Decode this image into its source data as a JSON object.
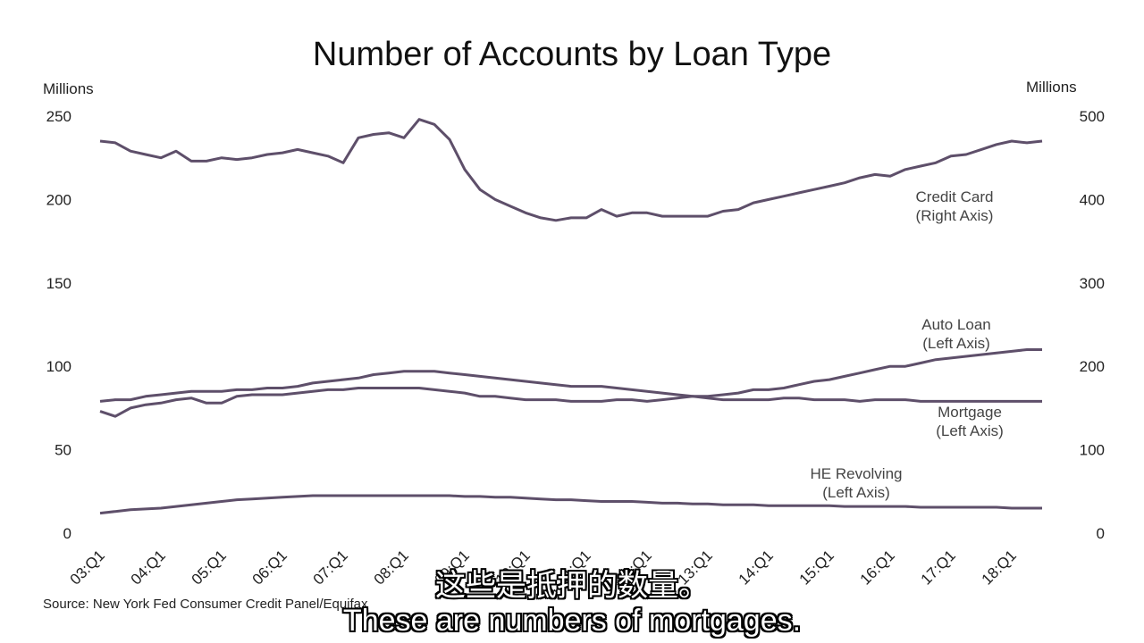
{
  "subtitles": {
    "chinese": "这些是抵押的数量。",
    "english": "These are numbers of mortgages."
  },
  "colors": {
    "series_line": "#5e4f6a",
    "text": "#222222",
    "subtitle_text": "#ffffff",
    "subtitle_outline": "#000000"
  },
  "chart_data": {
    "type": "line",
    "title": "Number of Accounts by Loan Type",
    "ylabel_left": "Millions",
    "ylabel_right": "Millions",
    "source": "Source: New York Fed Consumer Credit Panel/Equifax",
    "x_tick_labels": [
      "03:Q1",
      "04:Q1",
      "05:Q1",
      "06:Q1",
      "07:Q1",
      "08:Q1",
      "09:Q1",
      "10:Q1",
      "11:Q1",
      "12:Q1",
      "13:Q1",
      "14:Q1",
      "15:Q1",
      "16:Q1",
      "17:Q1",
      "18:Q1"
    ],
    "x_range": [
      2003.0,
      2018.5
    ],
    "ylim_left": [
      0,
      250
    ],
    "ylim_right": [
      0,
      500
    ],
    "yticks_left": [
      "0",
      "50",
      "100",
      "150",
      "200",
      "250"
    ],
    "yticks_right": [
      "0",
      "100",
      "200",
      "300",
      "400",
      "500"
    ],
    "grid": false,
    "series": [
      {
        "name": "Credit Card",
        "label_lines": [
          "Credit Card",
          "(Right Axis)"
        ],
        "axis": "right",
        "x": [
          2003.0,
          2003.25,
          2003.5,
          2003.75,
          2004.0,
          2004.25,
          2004.5,
          2004.75,
          2005.0,
          2005.25,
          2005.5,
          2005.75,
          2006.0,
          2006.25,
          2006.5,
          2006.75,
          2007.0,
          2007.25,
          2007.5,
          2007.75,
          2008.0,
          2008.25,
          2008.5,
          2008.75,
          2009.0,
          2009.25,
          2009.5,
          2009.75,
          2010.0,
          2010.25,
          2010.5,
          2010.75,
          2011.0,
          2011.25,
          2011.5,
          2011.75,
          2012.0,
          2012.25,
          2012.5,
          2012.75,
          2013.0,
          2013.25,
          2013.5,
          2013.75,
          2014.0,
          2014.25,
          2014.5,
          2014.75,
          2015.0,
          2015.25,
          2015.5,
          2015.75,
          2016.0,
          2016.25,
          2016.5,
          2016.75,
          2017.0,
          2017.25,
          2017.5,
          2017.75,
          2018.0,
          2018.25,
          2018.5
        ],
        "values": [
          470,
          468,
          458,
          454,
          450,
          458,
          446,
          446,
          450,
          448,
          450,
          454,
          456,
          460,
          456,
          452,
          444,
          474,
          478,
          480,
          474,
          496,
          490,
          472,
          436,
          412,
          400,
          392,
          384,
          378,
          375,
          378,
          378,
          388,
          380,
          384,
          384,
          380,
          380,
          380,
          380,
          386,
          388,
          396,
          400,
          404,
          408,
          412,
          416,
          420,
          426,
          430,
          428,
          436,
          440,
          444,
          452,
          454,
          460,
          466,
          470,
          468,
          470
        ]
      },
      {
        "name": "Auto Loan",
        "label_lines": [
          "Auto Loan",
          "(Left Axis)"
        ],
        "axis": "left",
        "x": [
          2003.0,
          2003.25,
          2003.5,
          2003.75,
          2004.0,
          2004.25,
          2004.5,
          2004.75,
          2005.0,
          2005.25,
          2005.5,
          2005.75,
          2006.0,
          2006.25,
          2006.5,
          2006.75,
          2007.0,
          2007.25,
          2007.5,
          2007.75,
          2008.0,
          2008.25,
          2008.5,
          2008.75,
          2009.0,
          2009.25,
          2009.5,
          2009.75,
          2010.0,
          2010.25,
          2010.5,
          2010.75,
          2011.0,
          2011.25,
          2011.5,
          2011.75,
          2012.0,
          2012.25,
          2012.5,
          2012.75,
          2013.0,
          2013.25,
          2013.5,
          2013.75,
          2014.0,
          2014.25,
          2014.5,
          2014.75,
          2015.0,
          2015.25,
          2015.5,
          2015.75,
          2016.0,
          2016.25,
          2016.5,
          2016.75,
          2017.0,
          2017.25,
          2017.5,
          2017.75,
          2018.0,
          2018.25,
          2018.5
        ],
        "values": [
          73,
          70,
          75,
          77,
          78,
          80,
          81,
          78,
          78,
          82,
          83,
          83,
          83,
          84,
          85,
          86,
          86,
          87,
          87,
          87,
          87,
          87,
          86,
          85,
          84,
          82,
          82,
          81,
          80,
          80,
          80,
          79,
          79,
          79,
          80,
          80,
          79,
          80,
          81,
          82,
          82,
          83,
          84,
          86,
          86,
          87,
          89,
          91,
          92,
          94,
          96,
          98,
          100,
          100,
          102,
          104,
          105,
          106,
          107,
          108,
          109,
          110,
          110
        ]
      },
      {
        "name": "Mortgage",
        "label_lines": [
          "Mortgage",
          "(Left Axis)"
        ],
        "axis": "left",
        "x": [
          2003.0,
          2003.25,
          2003.5,
          2003.75,
          2004.0,
          2004.25,
          2004.5,
          2004.75,
          2005.0,
          2005.25,
          2005.5,
          2005.75,
          2006.0,
          2006.25,
          2006.5,
          2006.75,
          2007.0,
          2007.25,
          2007.5,
          2007.75,
          2008.0,
          2008.25,
          2008.5,
          2008.75,
          2009.0,
          2009.25,
          2009.5,
          2009.75,
          2010.0,
          2010.25,
          2010.5,
          2010.75,
          2011.0,
          2011.25,
          2011.5,
          2011.75,
          2012.0,
          2012.25,
          2012.5,
          2012.75,
          2013.0,
          2013.25,
          2013.5,
          2013.75,
          2014.0,
          2014.25,
          2014.5,
          2014.75,
          2015.0,
          2015.25,
          2015.5,
          2015.75,
          2016.0,
          2016.25,
          2016.5,
          2016.75,
          2017.0,
          2017.25,
          2017.5,
          2017.75,
          2018.0,
          2018.25,
          2018.5
        ],
        "values": [
          79,
          80,
          80,
          82,
          83,
          84,
          85,
          85,
          85,
          86,
          86,
          87,
          87,
          88,
          90,
          91,
          92,
          93,
          95,
          96,
          97,
          97,
          97,
          96,
          95,
          94,
          93,
          92,
          91,
          90,
          89,
          88,
          88,
          88,
          87,
          86,
          85,
          84,
          83,
          82,
          81,
          80,
          80,
          80,
          80,
          81,
          81,
          80,
          80,
          80,
          79,
          80,
          80,
          80,
          79,
          79,
          79,
          79,
          79,
          79,
          79,
          79,
          79
        ]
      },
      {
        "name": "HE Revolving",
        "label_lines": [
          "HE Revolving",
          "(Left Axis)"
        ],
        "axis": "left",
        "x": [
          2003.0,
          2003.25,
          2003.5,
          2003.75,
          2004.0,
          2004.25,
          2004.5,
          2004.75,
          2005.0,
          2005.25,
          2005.5,
          2005.75,
          2006.0,
          2006.25,
          2006.5,
          2006.75,
          2007.0,
          2007.25,
          2007.5,
          2007.75,
          2008.0,
          2008.25,
          2008.5,
          2008.75,
          2009.0,
          2009.25,
          2009.5,
          2009.75,
          2010.0,
          2010.25,
          2010.5,
          2010.75,
          2011.0,
          2011.25,
          2011.5,
          2011.75,
          2012.0,
          2012.25,
          2012.5,
          2012.75,
          2013.0,
          2013.25,
          2013.5,
          2013.75,
          2014.0,
          2014.25,
          2014.5,
          2014.75,
          2015.0,
          2015.25,
          2015.5,
          2015.75,
          2016.0,
          2016.25,
          2016.5,
          2016.75,
          2017.0,
          2017.25,
          2017.5,
          2017.75,
          2018.0,
          2018.25,
          2018.5
        ],
        "values": [
          12,
          13,
          14,
          14.5,
          15,
          16,
          17,
          18,
          19,
          20,
          20.5,
          21,
          21.5,
          22,
          22.5,
          22.5,
          22.5,
          22.5,
          22.5,
          22.5,
          22.5,
          22.5,
          22.5,
          22.5,
          22,
          22,
          21.5,
          21.5,
          21,
          20.5,
          20,
          20,
          19.5,
          19,
          19,
          19,
          18.5,
          18,
          18,
          17.5,
          17.5,
          17,
          17,
          17,
          16.5,
          16.5,
          16.5,
          16.5,
          16.5,
          16,
          16,
          16,
          16,
          16,
          15.5,
          15.5,
          15.5,
          15.5,
          15.5,
          15.5,
          15,
          15,
          15
        ]
      }
    ]
  }
}
